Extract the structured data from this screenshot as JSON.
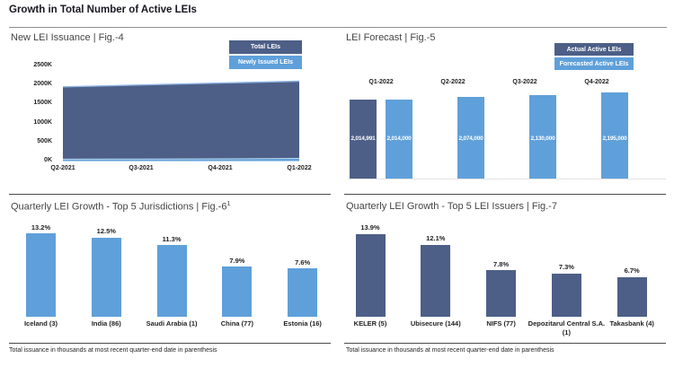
{
  "page": {
    "title": "Growth in Total Number of Active LEIs"
  },
  "footnote": "Total issuance in thousands at most recent quarter-end date in parenthesis",
  "colors": {
    "dark_blue": "#4D5F87",
    "light_blue": "#5FA0DA",
    "area_edge_light": "#8FB4E3",
    "strip_edge_light": "#BDD7EE"
  },
  "chart_data": [
    {
      "id": "fig4",
      "type": "area",
      "title": "New LEI Issuance | Fig.-4",
      "categories": [
        "Q2-2021",
        "Q3-2021",
        "Q4-2021",
        "Q1-2022"
      ],
      "series": [
        {
          "name": "Total LEIs",
          "color": "#4D5F87",
          "values": [
            1950000,
            2000000,
            2050000,
            2100000
          ]
        },
        {
          "name": "Newly Issued LEIs",
          "color": "#5FA0DA",
          "values": [
            50000,
            55000,
            60000,
            70000
          ]
        }
      ],
      "y_ticks": [
        "0K",
        "500K",
        "1000K",
        "1500K",
        "2000K",
        "2500K"
      ],
      "ylim": [
        0,
        2500000
      ],
      "legend_position": "top-right",
      "grid": false
    },
    {
      "id": "fig5",
      "type": "bar",
      "title": "LEI Forecast | Fig.-5",
      "categories": [
        "Q1-2022",
        "Q2-2022",
        "Q3-2022",
        "Q4-2022"
      ],
      "series": [
        {
          "name": "Actual Active LEIs",
          "color": "#4D5F87",
          "values": [
            2014991,
            null,
            null,
            null
          ]
        },
        {
          "name": "Forecasted Active LEIs",
          "color": "#5FA0DA",
          "values": [
            2014000,
            2074000,
            2130000,
            2195000
          ]
        }
      ],
      "data_labels": [
        "2,014,991",
        "2,014,000",
        "2,074,000",
        "2,130,000",
        "2,195,000"
      ],
      "category_labels_position": "above-bars",
      "legend_position": "top-right",
      "grid": false
    },
    {
      "id": "fig6",
      "type": "bar",
      "title": "Quarterly LEI Growth - Top 5 Jurisdictions | Fig.-6",
      "title_superscript": "1",
      "categories": [
        "Iceland (3)",
        "India (86)",
        "Saudi Arabia (1)",
        "China (77)",
        "Estonia (16)"
      ],
      "values": [
        13.2,
        12.5,
        11.3,
        7.9,
        7.6
      ],
      "unit": "%",
      "bar_color": "#5FA0DA",
      "grid": false
    },
    {
      "id": "fig7",
      "type": "bar",
      "title": "Quarterly LEI Growth - Top 5 LEI Issuers | Fig.-7",
      "categories": [
        "KELER (5)",
        "Ubisecure (144)",
        "NIFS (77)",
        "Depozitarul Central S.A. (1)",
        "Takasbank (4)"
      ],
      "values": [
        13.9,
        12.1,
        7.8,
        7.3,
        6.7
      ],
      "unit": "%",
      "bar_color": "#4D5F87",
      "grid": false
    }
  ]
}
